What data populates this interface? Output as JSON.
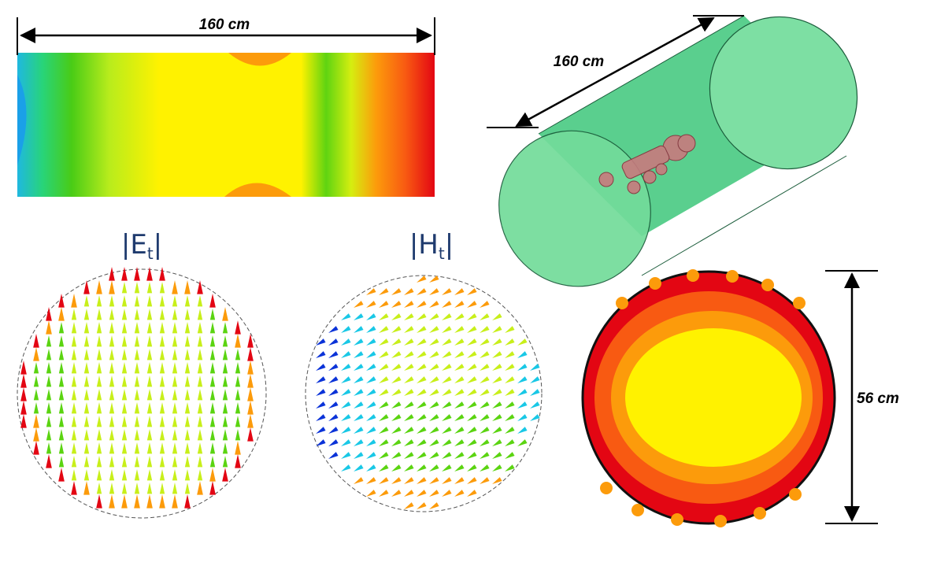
{
  "top_dimension": {
    "label": "160 cm"
  },
  "cylinder_dimension": {
    "label": "160 cm"
  },
  "cross_section_dimension": {
    "label": "56 cm"
  },
  "e_field_panel": {
    "symbol": "E",
    "subscript": "t",
    "bars": "|"
  },
  "h_field_panel": {
    "symbol": "H",
    "subscript": "t",
    "bars": "|"
  },
  "colors": {
    "red": "#e30613",
    "orange_red": "#f85a12",
    "orange": "#fc9b0b",
    "yellow": "#fff200",
    "yellow_green": "#c8ef1a",
    "green": "#5bd411",
    "bright_green": "#22c81a",
    "cyan": "#19c8e6",
    "blue": "#0b33d8",
    "tube_fill": "#4fd685",
    "phantom": "#c87a7e"
  }
}
